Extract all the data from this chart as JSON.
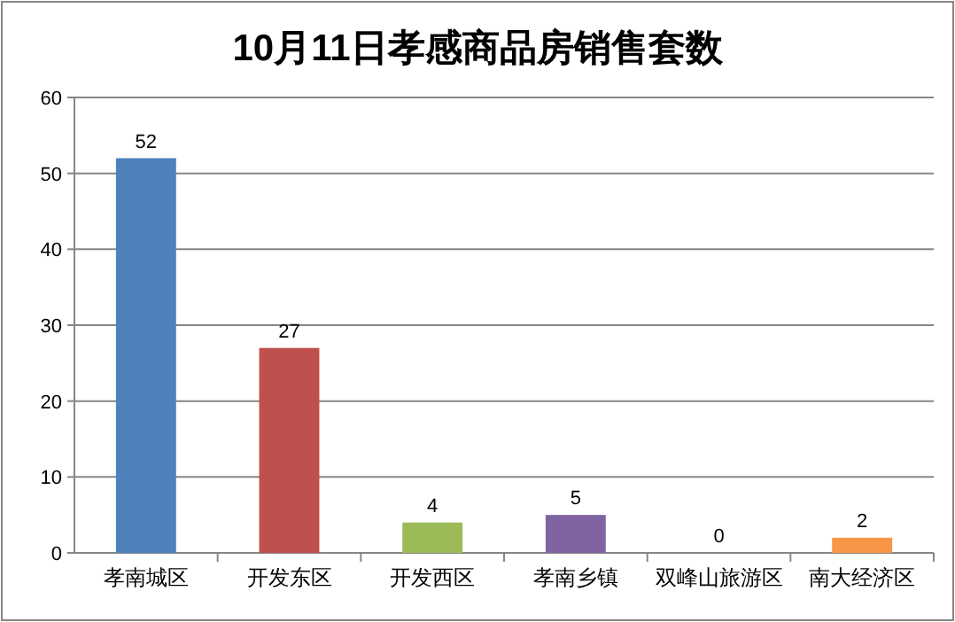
{
  "chart_data": {
    "type": "bar",
    "title": "10月11日孝感商品房销售套数",
    "categories": [
      "孝南城区",
      "开发东区",
      "开发西区",
      "孝南乡镇",
      "双峰山旅游区",
      "南大经济区"
    ],
    "values": [
      52,
      27,
      4,
      5,
      0,
      2
    ],
    "colors": [
      "#4f81bd",
      "#c0504d",
      "#9bbb59",
      "#8064a2",
      "#4bacc6",
      "#f79646"
    ],
    "ylim": [
      0,
      60
    ],
    "yticks": [
      0,
      10,
      20,
      30,
      40,
      50,
      60
    ],
    "grid": "y",
    "data_labels": true
  }
}
